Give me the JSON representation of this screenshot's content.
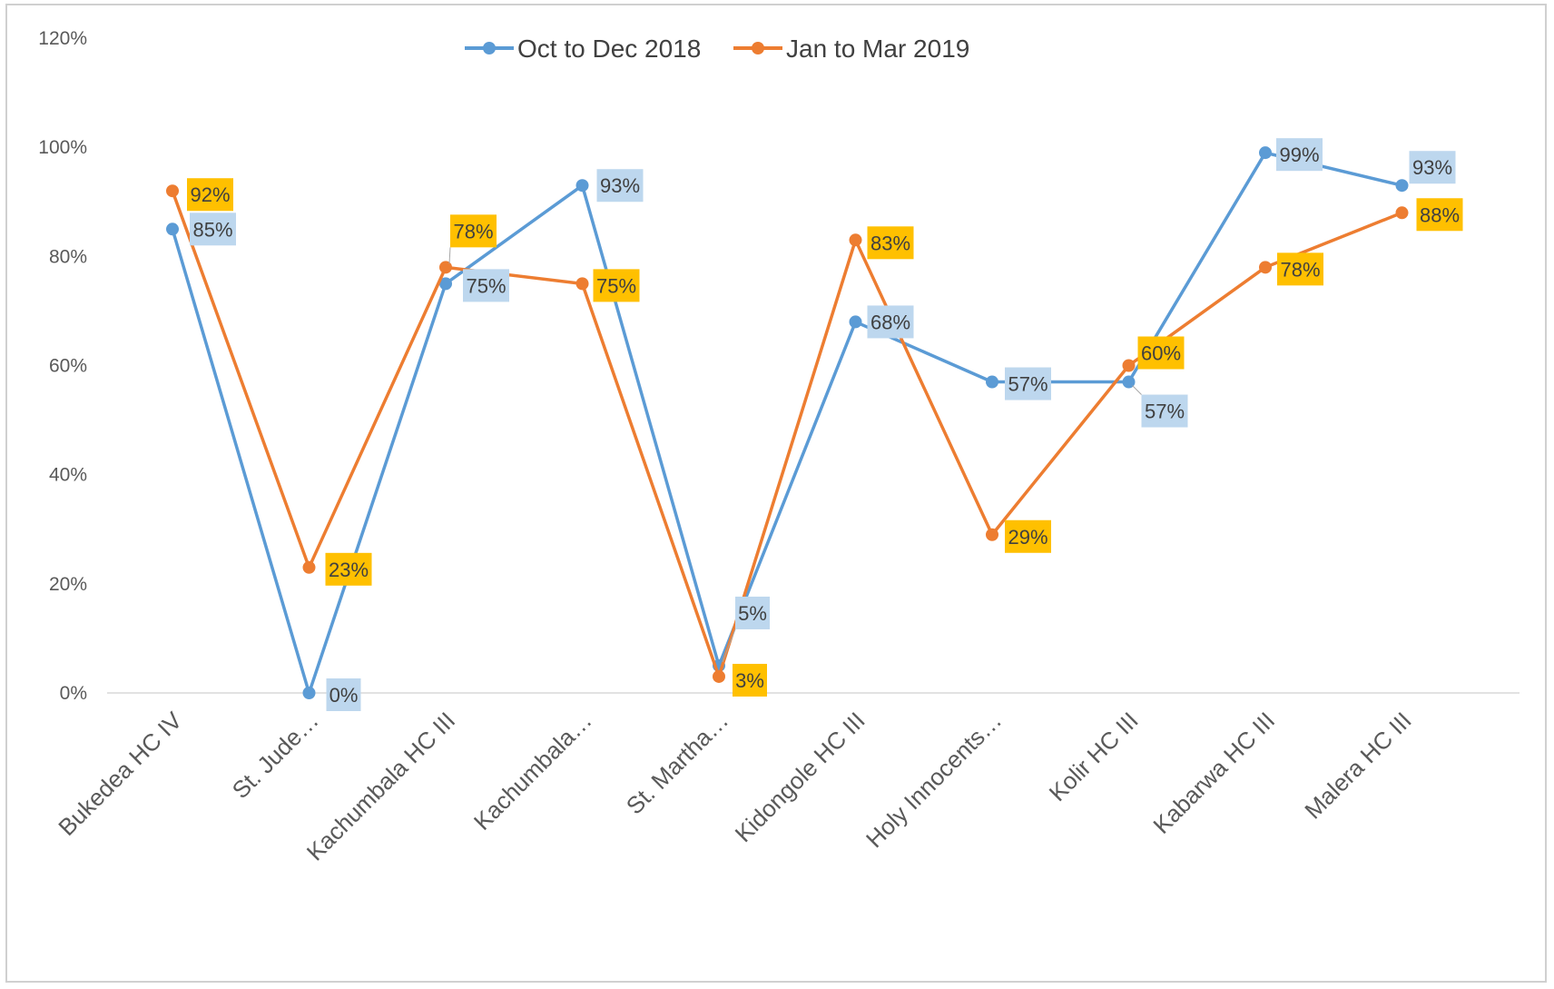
{
  "chart_data": {
    "type": "line",
    "title": "",
    "xlabel": "",
    "ylabel": "",
    "ylim": [
      0,
      1.2
    ],
    "ytick_labels": [
      "0%",
      "20%",
      "40%",
      "60%",
      "80%",
      "100%",
      "120%"
    ],
    "grid": false,
    "legend_position": "top",
    "categories": [
      "Bukedea HC IV",
      "St. Jude…",
      "Kachumbala HC III",
      "Kachumbala…",
      "St. Martha…",
      "Kidongole HC III",
      "Holy Innocents…",
      "Kolir HC III",
      "Kabarwa HC III",
      "Malera HC III"
    ],
    "series": [
      {
        "name": "Oct to Dec 2018",
        "color": "#5B9BD5",
        "label_bg": "#BDD7EE",
        "values": [
          0.85,
          0.0,
          0.75,
          0.93,
          0.05,
          0.68,
          0.57,
          0.57,
          0.99,
          0.93
        ],
        "labels": [
          "85%",
          "0%",
          "75%",
          "93%",
          "5%",
          "68%",
          "57%",
          "57%",
          "99%",
          "93%"
        ]
      },
      {
        "name": "Jan to Mar 2019",
        "color": "#ED7D31",
        "label_bg": "#FFC000",
        "values": [
          0.92,
          0.23,
          0.78,
          0.75,
          0.03,
          0.83,
          0.29,
          0.6,
          0.78,
          0.88
        ],
        "labels": [
          "92%",
          "23%",
          "78%",
          "75%",
          "3%",
          "83%",
          "29%",
          "60%",
          "78%",
          "88%"
        ]
      }
    ]
  }
}
